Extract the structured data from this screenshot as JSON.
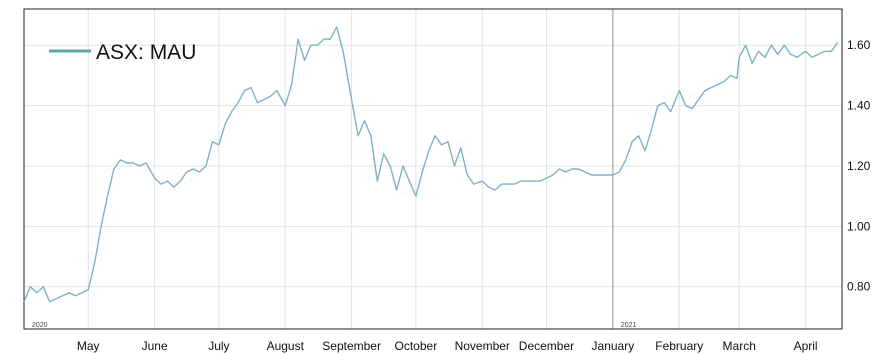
{
  "chart_data": {
    "type": "line",
    "series": [
      {
        "name": "ASX: MAU",
        "color": "#7fb1c7",
        "points": [
          [
            "2020-04-01",
            0.75
          ],
          [
            "2020-04-04",
            0.8
          ],
          [
            "2020-04-07",
            0.78
          ],
          [
            "2020-04-10",
            0.8
          ],
          [
            "2020-04-13",
            0.75
          ],
          [
            "2020-04-16",
            0.76
          ],
          [
            "2020-04-19",
            0.77
          ],
          [
            "2020-04-22",
            0.78
          ],
          [
            "2020-04-25",
            0.77
          ],
          [
            "2020-04-28",
            0.78
          ],
          [
            "2020-05-01",
            0.79
          ],
          [
            "2020-05-04",
            0.88
          ],
          [
            "2020-05-07",
            1.0
          ],
          [
            "2020-05-10",
            1.1
          ],
          [
            "2020-05-13",
            1.19
          ],
          [
            "2020-05-16",
            1.22
          ],
          [
            "2020-05-19",
            1.21
          ],
          [
            "2020-05-22",
            1.21
          ],
          [
            "2020-05-25",
            1.2
          ],
          [
            "2020-05-28",
            1.21
          ],
          [
            "2020-06-01",
            1.16
          ],
          [
            "2020-06-04",
            1.14
          ],
          [
            "2020-06-07",
            1.15
          ],
          [
            "2020-06-10",
            1.13
          ],
          [
            "2020-06-13",
            1.15
          ],
          [
            "2020-06-16",
            1.18
          ],
          [
            "2020-06-19",
            1.19
          ],
          [
            "2020-06-22",
            1.18
          ],
          [
            "2020-06-25",
            1.2
          ],
          [
            "2020-06-28",
            1.28
          ],
          [
            "2020-07-01",
            1.27
          ],
          [
            "2020-07-04",
            1.34
          ],
          [
            "2020-07-07",
            1.38
          ],
          [
            "2020-07-10",
            1.41
          ],
          [
            "2020-07-13",
            1.45
          ],
          [
            "2020-07-16",
            1.46
          ],
          [
            "2020-07-19",
            1.41
          ],
          [
            "2020-07-22",
            1.42
          ],
          [
            "2020-07-25",
            1.43
          ],
          [
            "2020-07-28",
            1.45
          ],
          [
            "2020-08-01",
            1.4
          ],
          [
            "2020-08-04",
            1.47
          ],
          [
            "2020-08-07",
            1.62
          ],
          [
            "2020-08-10",
            1.55
          ],
          [
            "2020-08-13",
            1.6
          ],
          [
            "2020-08-16",
            1.6
          ],
          [
            "2020-08-19",
            1.62
          ],
          [
            "2020-08-22",
            1.62
          ],
          [
            "2020-08-25",
            1.66
          ],
          [
            "2020-08-28",
            1.58
          ],
          [
            "2020-09-01",
            1.42
          ],
          [
            "2020-09-04",
            1.3
          ],
          [
            "2020-09-07",
            1.35
          ],
          [
            "2020-09-10",
            1.3
          ],
          [
            "2020-09-13",
            1.15
          ],
          [
            "2020-09-16",
            1.24
          ],
          [
            "2020-09-19",
            1.2
          ],
          [
            "2020-09-22",
            1.12
          ],
          [
            "2020-09-25",
            1.2
          ],
          [
            "2020-09-28",
            1.15
          ],
          [
            "2020-10-01",
            1.1
          ],
          [
            "2020-10-04",
            1.18
          ],
          [
            "2020-10-07",
            1.25
          ],
          [
            "2020-10-10",
            1.3
          ],
          [
            "2020-10-13",
            1.27
          ],
          [
            "2020-10-16",
            1.28
          ],
          [
            "2020-10-19",
            1.2
          ],
          [
            "2020-10-22",
            1.26
          ],
          [
            "2020-10-25",
            1.17
          ],
          [
            "2020-10-28",
            1.14
          ],
          [
            "2020-11-01",
            1.15
          ],
          [
            "2020-11-04",
            1.13
          ],
          [
            "2020-11-07",
            1.12
          ],
          [
            "2020-11-10",
            1.14
          ],
          [
            "2020-11-13",
            1.14
          ],
          [
            "2020-11-16",
            1.14
          ],
          [
            "2020-11-19",
            1.15
          ],
          [
            "2020-11-22",
            1.15
          ],
          [
            "2020-11-25",
            1.15
          ],
          [
            "2020-11-28",
            1.15
          ],
          [
            "2020-12-01",
            1.16
          ],
          [
            "2020-12-04",
            1.17
          ],
          [
            "2020-12-07",
            1.19
          ],
          [
            "2020-12-10",
            1.18
          ],
          [
            "2020-12-13",
            1.19
          ],
          [
            "2020-12-16",
            1.19
          ],
          [
            "2020-12-19",
            1.18
          ],
          [
            "2020-12-22",
            1.17
          ],
          [
            "2020-12-25",
            1.17
          ],
          [
            "2020-12-28",
            1.17
          ],
          [
            "2021-01-01",
            1.17
          ],
          [
            "2021-01-04",
            1.18
          ],
          [
            "2021-01-07",
            1.22
          ],
          [
            "2021-01-10",
            1.28
          ],
          [
            "2021-01-13",
            1.3
          ],
          [
            "2021-01-16",
            1.25
          ],
          [
            "2021-01-19",
            1.32
          ],
          [
            "2021-01-22",
            1.4
          ],
          [
            "2021-01-25",
            1.41
          ],
          [
            "2021-01-28",
            1.38
          ],
          [
            "2021-02-01",
            1.45
          ],
          [
            "2021-02-04",
            1.4
          ],
          [
            "2021-02-07",
            1.39
          ],
          [
            "2021-02-10",
            1.42
          ],
          [
            "2021-02-13",
            1.45
          ],
          [
            "2021-02-16",
            1.46
          ],
          [
            "2021-02-19",
            1.47
          ],
          [
            "2021-02-22",
            1.48
          ],
          [
            "2021-02-25",
            1.5
          ],
          [
            "2021-02-28",
            1.49
          ],
          [
            "2021-03-01",
            1.56
          ],
          [
            "2021-03-04",
            1.6
          ],
          [
            "2021-03-07",
            1.54
          ],
          [
            "2021-03-10",
            1.58
          ],
          [
            "2021-03-13",
            1.56
          ],
          [
            "2021-03-16",
            1.6
          ],
          [
            "2021-03-19",
            1.57
          ],
          [
            "2021-03-22",
            1.6
          ],
          [
            "2021-03-25",
            1.57
          ],
          [
            "2021-03-28",
            1.56
          ],
          [
            "2021-04-01",
            1.58
          ],
          [
            "2021-04-04",
            1.56
          ],
          [
            "2021-04-07",
            1.57
          ],
          [
            "2021-04-10",
            1.58
          ],
          [
            "2021-04-13",
            1.58
          ],
          [
            "2021-04-16",
            1.61
          ]
        ]
      }
    ],
    "x_ticks": [
      {
        "date": "2020-05-01",
        "label": "May"
      },
      {
        "date": "2020-06-01",
        "label": "June"
      },
      {
        "date": "2020-07-01",
        "label": "July"
      },
      {
        "date": "2020-08-01",
        "label": "August"
      },
      {
        "date": "2020-09-01",
        "label": "September"
      },
      {
        "date": "2020-10-01",
        "label": "October"
      },
      {
        "date": "2020-11-01",
        "label": "November"
      },
      {
        "date": "2020-12-01",
        "label": "December"
      },
      {
        "date": "2021-01-01",
        "label": "January"
      },
      {
        "date": "2021-02-01",
        "label": "February"
      },
      {
        "date": "2021-03-01",
        "label": "March"
      },
      {
        "date": "2021-04-01",
        "label": "April"
      }
    ],
    "year_markers": [
      {
        "date": "2020-04-01",
        "label": "2020"
      },
      {
        "date": "2021-01-01",
        "label": "2021"
      }
    ],
    "y_ticks": [
      0.8,
      1.0,
      1.2,
      1.4,
      1.6
    ],
    "ylim": [
      0.66,
      1.72
    ],
    "xlim": [
      "2020-04-01",
      "2021-04-18"
    ],
    "grid": true,
    "y_axis_side": "right",
    "legend": {
      "position": "top-left",
      "label": "ASX: MAU",
      "color": "#5fa8a0"
    }
  }
}
